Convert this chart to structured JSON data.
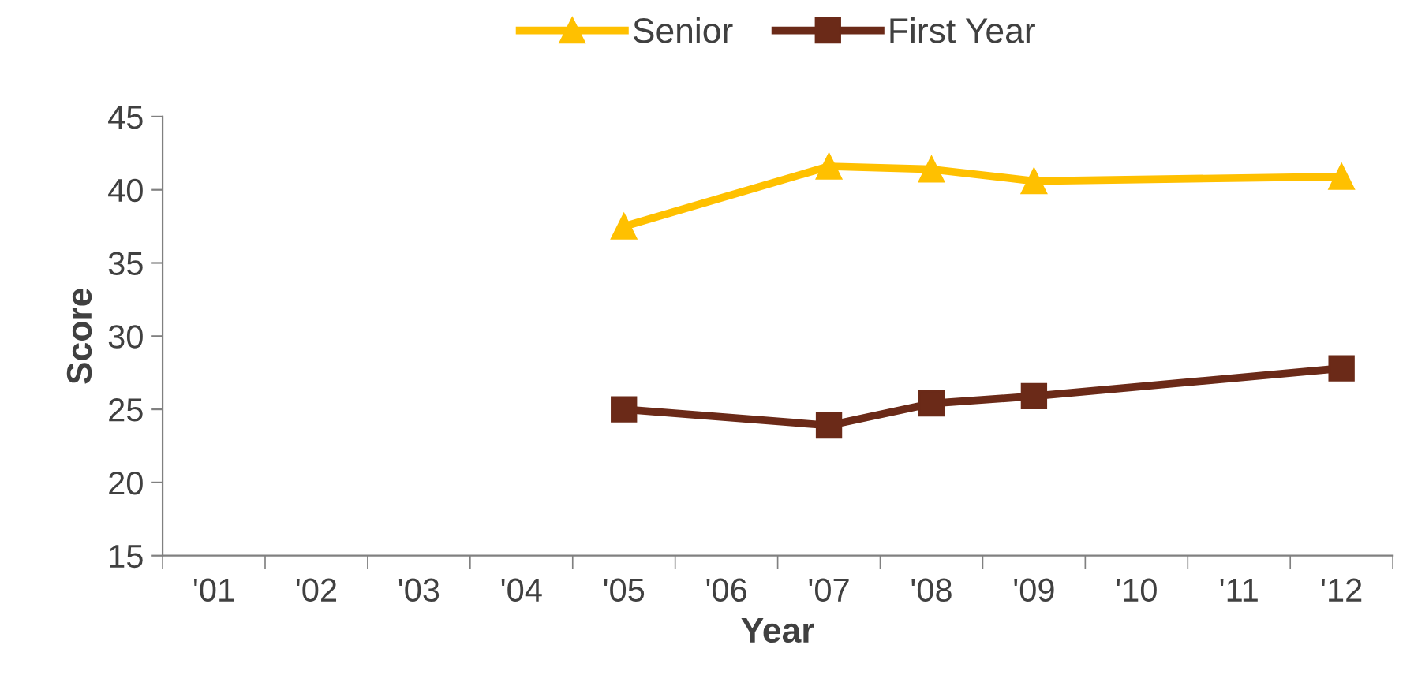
{
  "chart_data": {
    "type": "line",
    "xlabel": "Year",
    "ylabel": "Score",
    "categories": [
      "'01",
      "'02",
      "'03",
      "'04",
      "'05",
      "'06",
      "'07",
      "'08",
      "'09",
      "'10",
      "'11",
      "'12"
    ],
    "series": [
      {
        "name": "Senior",
        "color": "#ffc000",
        "marker": "triangle",
        "values": [
          null,
          null,
          null,
          null,
          37.5,
          null,
          41.6,
          41.4,
          40.6,
          null,
          null,
          40.9
        ]
      },
      {
        "name": "First Year",
        "color": "#6b2a18",
        "marker": "square",
        "values": [
          null,
          null,
          null,
          null,
          25.0,
          null,
          23.9,
          25.4,
          25.9,
          null,
          null,
          27.8
        ]
      }
    ],
    "ylim": [
      15,
      45
    ],
    "yticks": [
      15,
      20,
      25,
      30,
      35,
      40,
      45
    ],
    "grid": false,
    "legend": "top",
    "line_style": "solid"
  }
}
